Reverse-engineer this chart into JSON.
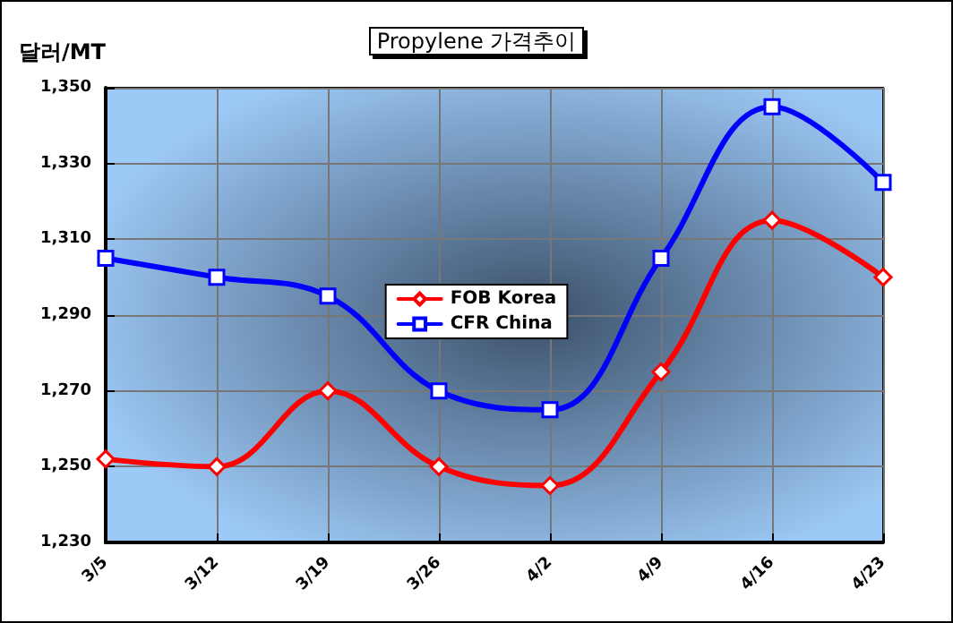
{
  "chart_data": {
    "type": "line",
    "title": "Propylene 가격추이",
    "ylabel": "달러/MT",
    "categories": [
      "3/5",
      "3/12",
      "3/19",
      "3/26",
      "4/2",
      "4/9",
      "4/16",
      "4/23"
    ],
    "series": [
      {
        "name": "FOB Korea",
        "color": "#ff0000",
        "marker": "diamond",
        "values": [
          1252,
          1250,
          1270,
          1250,
          1245,
          1275,
          1315,
          1300
        ]
      },
      {
        "name": "CFR China",
        "color": "#0000ff",
        "marker": "square",
        "values": [
          1305,
          1300,
          1295,
          1270,
          1265,
          1305,
          1345,
          1325
        ]
      }
    ],
    "ylim": [
      1230,
      1350
    ],
    "yticks": [
      {
        "value": 1230,
        "label": "1,230"
      },
      {
        "value": 1250,
        "label": "1,250"
      },
      {
        "value": 1270,
        "label": "1,270"
      },
      {
        "value": 1290,
        "label": "1,290"
      },
      {
        "value": 1310,
        "label": "1,310"
      },
      {
        "value": 1330,
        "label": "1,330"
      },
      {
        "value": 1350,
        "label": "1,350"
      }
    ],
    "grid": true,
    "legend": "center",
    "line_style": "solid"
  }
}
